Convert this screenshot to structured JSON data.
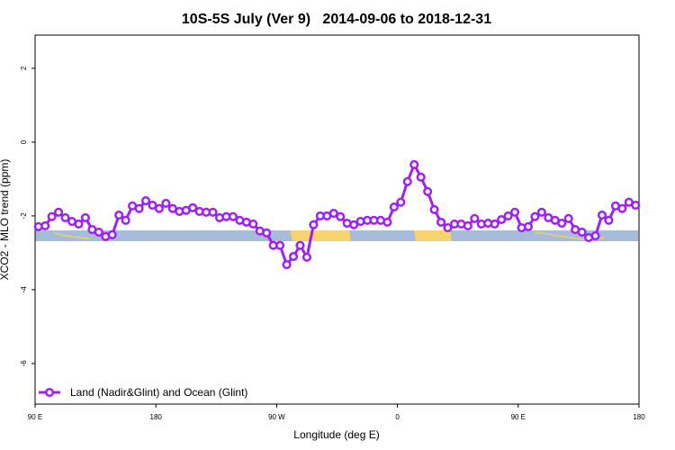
{
  "chart_data": {
    "type": "line",
    "title": "10S-5S July (Ver 9)   2014-09-06 to 2018-12-31",
    "x_label": "Longitude (deg E)",
    "y_label": "XCO2 - MLO trend (ppm)",
    "x": [
      92.5,
      97.5,
      102.5,
      107.5,
      112.5,
      117.5,
      122.5,
      127.5,
      132.5,
      137.5,
      142.5,
      147.5,
      152.5,
      157.5,
      162.5,
      167.5,
      172.5,
      177.5,
      182.5,
      187.5,
      192.5,
      197.5,
      202.5,
      207.5,
      212.5,
      217.5,
      222.5,
      227.5,
      232.5,
      237.5,
      242.5,
      247.5,
      252.5,
      257.5,
      262.5,
      267.5,
      272.5,
      277.5,
      282.5,
      287.5,
      292.5,
      297.5,
      302.5,
      307.5,
      312.5,
      317.5,
      322.5,
      327.5,
      332.5,
      337.5,
      342.5,
      347.5,
      352.5,
      357.5,
      362.5,
      367.5,
      372.5,
      377.5,
      382.5,
      387.5,
      392.5,
      397.5,
      402.5,
      407.5,
      412.5,
      417.5,
      422.5,
      427.5,
      432.5,
      437.5,
      442.5,
      447.5,
      452.5,
      457.5,
      462.5,
      467.5,
      472.5,
      477.5,
      482.5,
      487.5,
      492.5,
      497.5,
      502.5,
      507.5,
      512.5,
      517.5,
      522.5,
      527.5,
      532.5,
      537.5
    ],
    "series": [
      {
        "name": "Land (Nadir&Glint) and Ocean (Glint)",
        "color": "#a020f0",
        "values": [
          -2.29,
          -2.27,
          -2.02,
          -1.9,
          -2.05,
          -2.15,
          -2.22,
          -2.05,
          -2.37,
          -2.44,
          -2.56,
          -2.51,
          -1.98,
          -2.12,
          -1.73,
          -1.8,
          -1.59,
          -1.71,
          -1.8,
          -1.66,
          -1.8,
          -1.88,
          -1.85,
          -1.78,
          -1.88,
          -1.9,
          -1.9,
          -2.05,
          -2.02,
          -2.02,
          -2.12,
          -2.17,
          -2.22,
          -2.41,
          -2.46,
          -2.8,
          -2.8,
          -3.32,
          -3.1,
          -2.8,
          -3.12,
          -2.24,
          -2.0,
          -2.0,
          -1.93,
          -2.02,
          -2.2,
          -2.24,
          -2.15,
          -2.12,
          -2.12,
          -2.12,
          -2.17,
          -1.76,
          -1.63,
          -1.07,
          -0.61,
          -0.95,
          -1.34,
          -1.83,
          -2.17,
          -2.32,
          -2.22,
          -2.22,
          -2.27,
          -2.07,
          -2.22,
          -2.2,
          -2.22,
          -2.1,
          -2.0,
          -1.9,
          -2.32,
          -2.29,
          -2.02,
          -1.9,
          -2.05,
          -2.12,
          -2.2,
          -2.07,
          -2.37,
          -2.44,
          -2.59,
          -2.54,
          -1.98,
          -2.12,
          -1.73,
          -1.8,
          -1.63,
          -1.71
        ]
      }
    ],
    "xlim": [
      90,
      540
    ],
    "xticks": [
      {
        "value": 90,
        "label": "90 E"
      },
      180,
      {
        "value": 270,
        "label": "90 W"
      },
      {
        "value": 360,
        "label": "0"
      },
      {
        "value": 450,
        "label": "90 E"
      },
      {
        "value": 540,
        "label": "180"
      }
    ],
    "ylim": [
      -7.1,
      2.9
    ],
    "yticks": [
      2,
      0,
      -2,
      -4,
      -6
    ],
    "legend": "bottom-left"
  }
}
